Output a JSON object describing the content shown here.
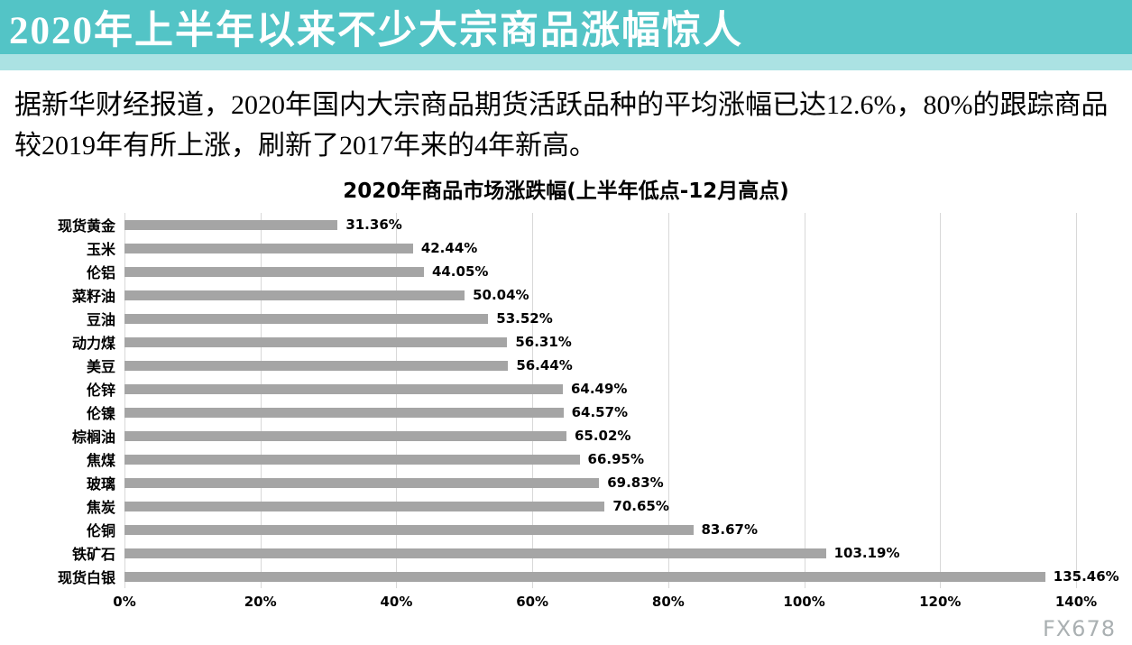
{
  "banner": {
    "title": "2020年上半年以来不少大宗商品涨幅惊人",
    "bg_color": "#53c4c6",
    "strip_color": "#abe2e3"
  },
  "intro": {
    "text": "据新华财经报道，2020年国内大宗商品期货活跃品种的平均涨幅已达12.6%，80%的跟踪商品较2019年有所上涨，刷新了2017年来的4年新高。"
  },
  "chart_data": {
    "type": "bar",
    "orientation": "horizontal",
    "title": "2020年商品市场涨跌幅(上半年低点-12月高点)",
    "categories": [
      "现货黄金",
      "玉米",
      "伦铝",
      "菜籽油",
      "豆油",
      "动力煤",
      "美豆",
      "伦锌",
      "伦镍",
      "棕榈油",
      "焦煤",
      "玻璃",
      "焦炭",
      "伦铜",
      "铁矿石",
      "现货白银"
    ],
    "values": [
      31.36,
      42.44,
      44.05,
      50.04,
      53.52,
      56.31,
      56.44,
      64.49,
      64.57,
      65.02,
      66.95,
      69.83,
      70.65,
      83.67,
      103.19,
      135.46
    ],
    "value_labels": [
      "31.36%",
      "42.44%",
      "44.05%",
      "50.04%",
      "53.52%",
      "56.31%",
      "56.44%",
      "64.49%",
      "64.57%",
      "65.02%",
      "66.95%",
      "69.83%",
      "70.65%",
      "83.67%",
      "103.19%",
      "135.46%"
    ],
    "x_ticks": [
      "0%",
      "20%",
      "40%",
      "60%",
      "80%",
      "100%",
      "120%",
      "140%"
    ],
    "xlim": [
      0,
      140
    ],
    "bar_color": "#a5a5a5",
    "grid": true,
    "gridline_color": "#d8d8d8",
    "legend": "none"
  },
  "watermark": "FX678"
}
